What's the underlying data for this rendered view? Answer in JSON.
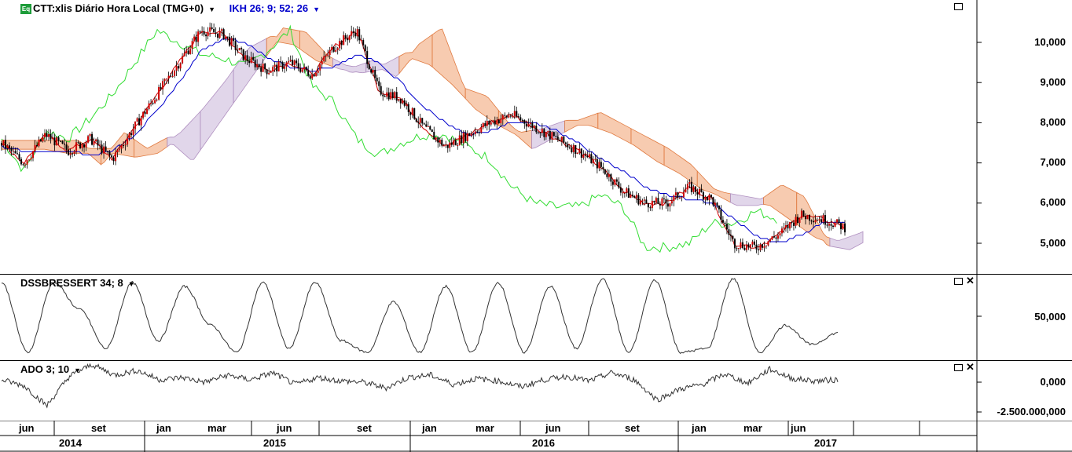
{
  "main_panel": {
    "icon": "Eq",
    "title": "CTT:xlis Diário Hora Local (TMG+0)",
    "indicator": "IKH 26; 9; 52; 26",
    "y_ticks": [
      "10,000",
      "9,000",
      "8,000",
      "7,000",
      "6,000",
      "5,000"
    ]
  },
  "dss_panel": {
    "title": "DSSBRESSERT 34; 8",
    "y_ticks": [
      "50,000"
    ]
  },
  "ado_panel": {
    "title": "ADO 3; 10",
    "y_ticks": [
      "0,000",
      "-2.500.000,000"
    ]
  },
  "x_axis": {
    "months": [
      "jun",
      "set",
      "jan",
      "mar",
      "jun",
      "set",
      "jan",
      "mar",
      "jun",
      "set",
      "jan",
      "mar",
      "jun"
    ],
    "years": [
      "2014",
      "2015",
      "2016",
      "2017"
    ]
  },
  "colors": {
    "price_up": "#cc0000",
    "price_down": "#000000",
    "tenkan": "#cc0000",
    "kijun": "#0000cc",
    "chikou": "#33dd33",
    "cloud_bull": "#f0a070",
    "cloud_bear": "#c8b4d8",
    "grid": "#000000",
    "title_blue": "#0000cc"
  },
  "chart_data": [
    {
      "type": "line",
      "title": "CTT:xlis Diário Hora Local (TMG+0)",
      "ylim": [
        4300,
        10900
      ],
      "x": [
        "2014-05",
        "2014-06",
        "2014-07",
        "2014-08",
        "2014-09",
        "2014-10",
        "2014-11",
        "2014-12",
        "2015-01",
        "2015-02",
        "2015-03",
        "2015-04",
        "2015-05",
        "2015-06",
        "2015-07",
        "2015-08",
        "2015-09",
        "2015-10",
        "2015-11",
        "2015-12",
        "2016-01",
        "2016-02",
        "2016-03",
        "2016-04",
        "2016-05",
        "2016-06",
        "2016-07",
        "2016-08",
        "2016-09",
        "2016-10",
        "2016-11",
        "2016-12",
        "2017-01",
        "2017-02",
        "2017-03",
        "2017-04",
        "2017-05",
        "2017-06",
        "2017-07"
      ],
      "series": [
        {
          "name": "price",
          "values": [
            7500,
            7000,
            7700,
            7300,
            7600,
            7100,
            7900,
            8700,
            9500,
            10300,
            10200,
            9600,
            9300,
            9500,
            9200,
            9900,
            10300,
            8800,
            8600,
            7900,
            7400,
            7700,
            8000,
            8200,
            7900,
            7600,
            7300,
            6900,
            6300,
            6000,
            6000,
            6400,
            6100,
            5000,
            4900,
            5200,
            5700,
            5600,
            5400
          ]
        },
        {
          "name": "kijun",
          "values": [
            7400,
            7300,
            7300,
            7300,
            7200,
            7300,
            7700,
            8300,
            9000,
            9800,
            10100,
            10000,
            9600,
            9400,
            9300,
            9400,
            9700,
            9500,
            9000,
            8400,
            8000,
            7700,
            7800,
            8000,
            8000,
            7800,
            7500,
            7100,
            6800,
            6400,
            6200,
            6100,
            6000,
            5600,
            5200,
            5000,
            5200,
            5500,
            5500
          ]
        },
        {
          "name": "chikou",
          "values": [
            7600,
            6800,
            7800,
            7600,
            8100,
            8700,
            9500,
            10300,
            10000,
            9700,
            9600,
            9400,
            9800,
            10300,
            8900,
            8500,
            7600,
            7200,
            7500,
            7700,
            7700,
            7400,
            7100,
            6400,
            6000,
            5900,
            5900,
            6200,
            5900,
            4900,
            4900,
            5000,
            5500,
            5500,
            5800,
            5600,
            null,
            null,
            null
          ]
        }
      ]
    },
    {
      "type": "line",
      "title": "DSSBRESSERT 34; 8",
      "series": [
        {
          "name": "DSSBRESSERT",
          "values": [
            95,
            5,
            95,
            60,
            10,
            95,
            20,
            90,
            40,
            5,
            95,
            10,
            95,
            20,
            5,
            70,
            5,
            90,
            5,
            95,
            5,
            90,
            10,
            100,
            5,
            98,
            5,
            10,
            100,
            5,
            40,
            15,
            30
          ]
        }
      ]
    },
    {
      "type": "line",
      "title": "ADO 3; 10",
      "series": [
        {
          "name": "ADO",
          "values": [
            0.2,
            -0.3,
            -2.0,
            0.5,
            1.5,
            0.6,
            1.0,
            0.2,
            0.4,
            0.0,
            0.6,
            0.2,
            0.8,
            -0.2,
            0.4,
            0.1,
            0.0,
            -0.5,
            0.4,
            0.6,
            -0.2,
            0.3,
            0.1,
            -0.4,
            0.2,
            0.5,
            0.1,
            0.8,
            0.2,
            -1.5,
            -0.6,
            -0.2,
            0.7,
            -0.1,
            1.1,
            0.3,
            0.1,
            0.2
          ]
        }
      ]
    }
  ]
}
